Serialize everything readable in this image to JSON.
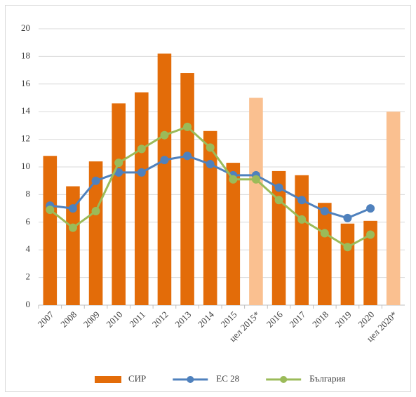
{
  "chart_data": {
    "type": "bar_line",
    "categories": [
      "2007",
      "2008",
      "2009",
      "2010",
      "2011",
      "2012",
      "2013",
      "2014",
      "2015",
      "цел 2015*",
      "2016",
      "2017",
      "2018",
      "2019",
      "2020",
      "цел 2020*"
    ],
    "series": [
      {
        "name": "СИР",
        "type": "bar",
        "color": "#e36c09",
        "colors": [
          "#e36c09",
          "#e36c09",
          "#e36c09",
          "#e36c09",
          "#e36c09",
          "#e36c09",
          "#e36c09",
          "#e36c09",
          "#e36c09",
          "#fac090",
          "#e36c09",
          "#e36c09",
          "#e36c09",
          "#e36c09",
          "#e36c09",
          "#fac090"
        ],
        "values": [
          10.8,
          8.6,
          10.4,
          14.6,
          15.4,
          18.2,
          16.8,
          12.6,
          10.3,
          15.0,
          9.7,
          9.4,
          7.4,
          5.9,
          6.1,
          14.0
        ]
      },
      {
        "name": "ЕС 28",
        "type": "line",
        "color": "#4f81bd",
        "values": [
          7.2,
          7.0,
          9.0,
          9.6,
          9.6,
          10.5,
          10.8,
          10.2,
          9.4,
          9.4,
          8.5,
          7.6,
          6.8,
          6.3,
          7.0,
          null
        ]
      },
      {
        "name": "България",
        "type": "line",
        "color": "#9bbb59",
        "values": [
          6.9,
          5.6,
          6.8,
          10.3,
          11.3,
          12.3,
          12.9,
          11.4,
          9.1,
          9.1,
          7.6,
          6.2,
          5.2,
          4.2,
          5.1,
          null
        ]
      }
    ],
    "ylim": [
      0,
      20
    ],
    "yticks": [
      0,
      2,
      4,
      6,
      8,
      10,
      12,
      14,
      16,
      18,
      20
    ],
    "grid": true,
    "legend": "bottom"
  }
}
